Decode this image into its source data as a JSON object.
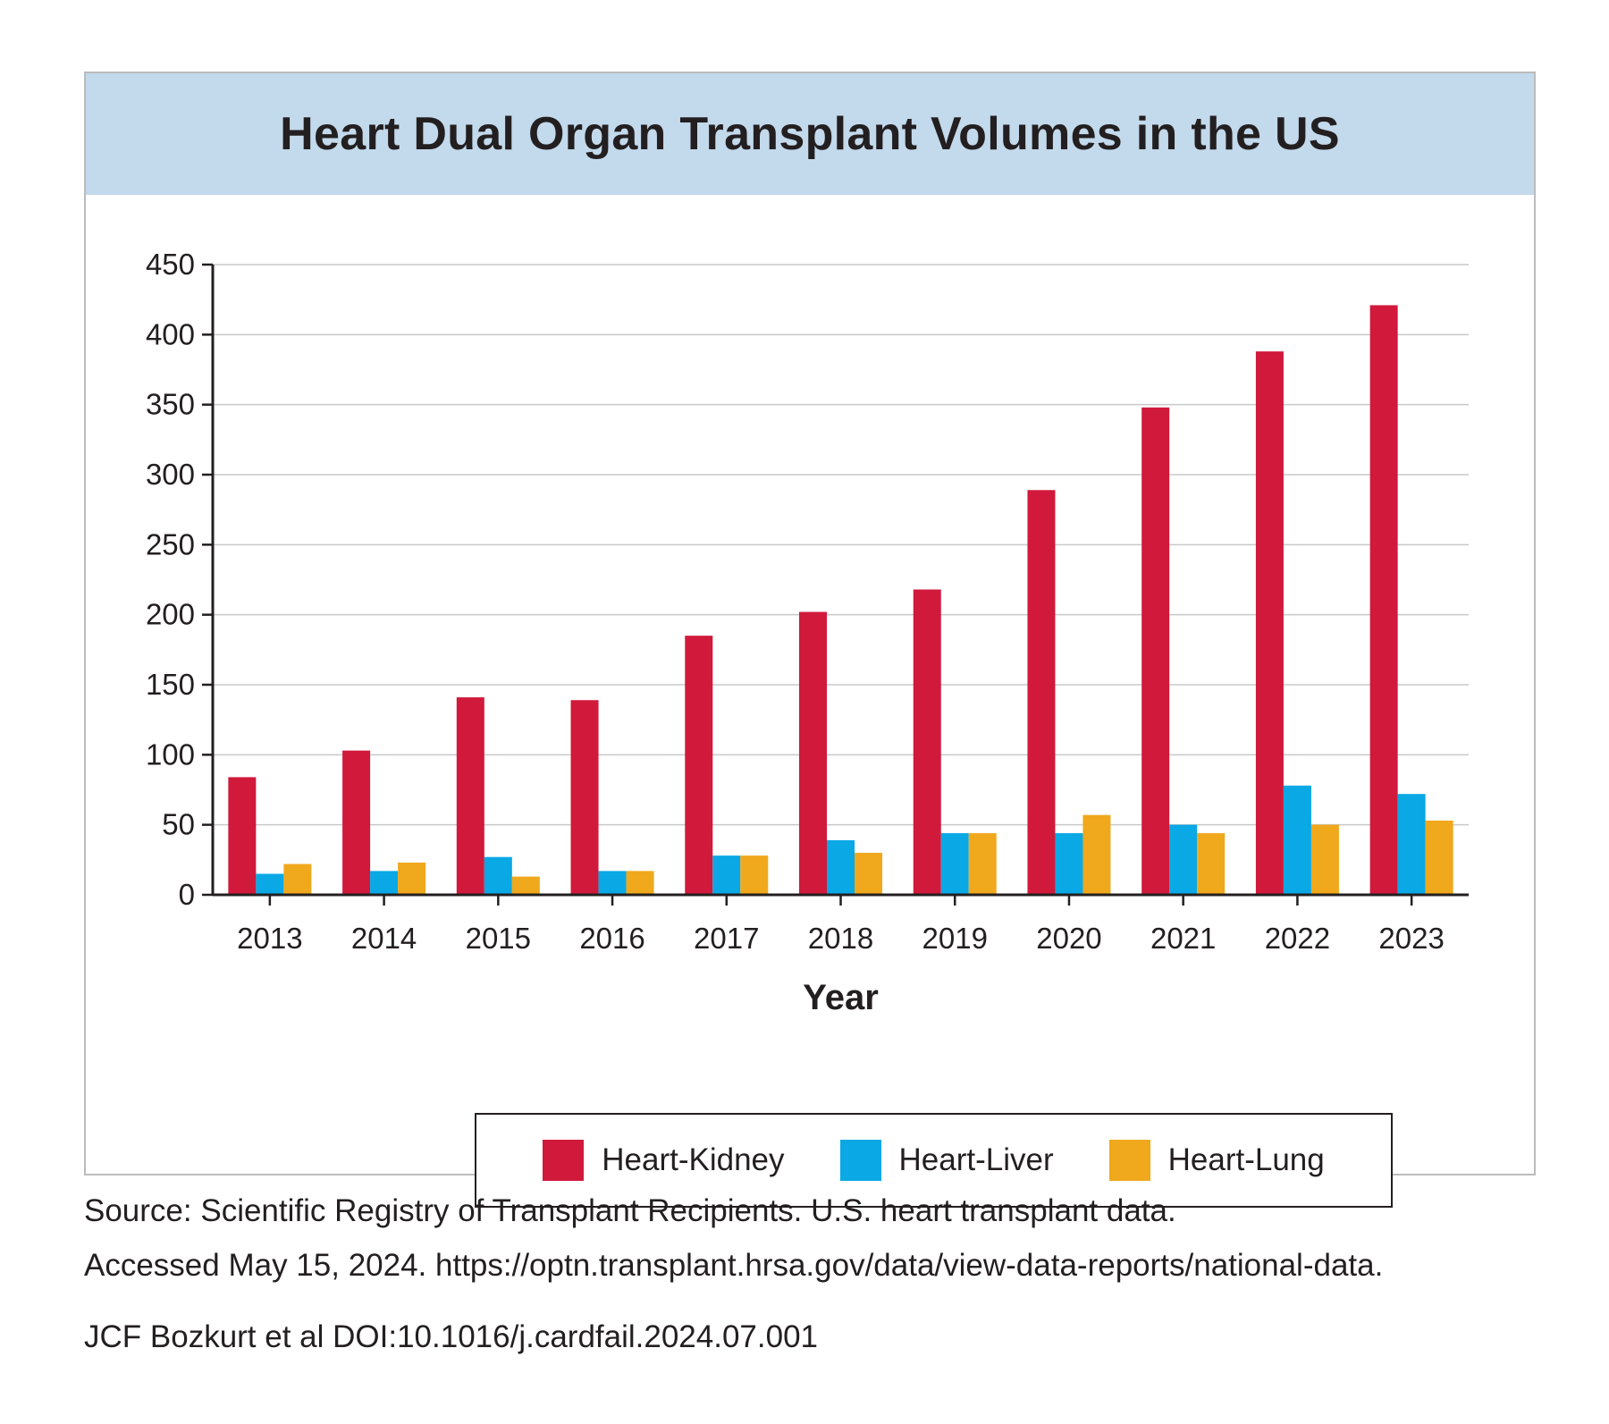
{
  "chart_data": {
    "type": "bar",
    "title": "Heart Dual Organ Transplant Volumes in the US",
    "xlabel": "Year",
    "ylabel": "",
    "ylim": [
      0,
      450
    ],
    "yticks": [
      0,
      50,
      100,
      150,
      200,
      250,
      300,
      350,
      400,
      450
    ],
    "grid": true,
    "legend_position": "bottom",
    "categories": [
      "2013",
      "2014",
      "2015",
      "2016",
      "2017",
      "2018",
      "2019",
      "2020",
      "2021",
      "2022",
      "2023"
    ],
    "series": [
      {
        "name": "Heart-Kidney",
        "color": "#d0193b",
        "values": [
          84,
          103,
          141,
          139,
          185,
          202,
          218,
          289,
          348,
          388,
          421
        ]
      },
      {
        "name": "Heart-Liver",
        "color": "#0aa8e4",
        "values": [
          15,
          17,
          27,
          17,
          28,
          39,
          44,
          44,
          50,
          78,
          72
        ]
      },
      {
        "name": "Heart-Lung",
        "color": "#f0a81c",
        "values": [
          22,
          23,
          13,
          17,
          28,
          30,
          44,
          57,
          44,
          50,
          53
        ]
      }
    ]
  },
  "footnotes": {
    "source_line1": "Source: Scientific Registry of Transplant Recipients. U.S. heart transplant data.",
    "source_line2": "Accessed May 15, 2024. https://optn.transplant.hrsa.gov/data/view-data-reports/national-data.",
    "citation": "JCF Bozkurt et al  DOI:10.1016/j.cardfail.2024.07.001"
  }
}
